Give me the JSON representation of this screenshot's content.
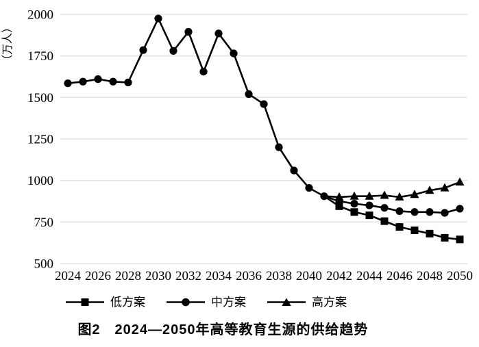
{
  "chart_data": {
    "type": "line",
    "title": "图2　2024—2050年高等教育生源的供给趋势",
    "xlabel": "",
    "ylabel": "（万人）",
    "ylim": [
      500,
      2000
    ],
    "yticks": [
      500,
      750,
      1000,
      1250,
      1500,
      1750,
      2000
    ],
    "xticks": [
      2024,
      2026,
      2028,
      2030,
      2032,
      2034,
      2036,
      2038,
      2040,
      2042,
      2044,
      2046,
      2048,
      2050
    ],
    "x_range": [
      2024,
      2050
    ],
    "grid": true,
    "legend": [
      "低方案",
      "中方案",
      "高方案"
    ],
    "legend_position": "bottom",
    "colors": {
      "series": "#000000",
      "gridline": "#d9d9d9",
      "background": "#ffffff",
      "text": "#000000"
    },
    "series": [
      {
        "key": "low",
        "name": "低方案",
        "marker": "square",
        "marker_from": 2042,
        "years": [
          2041,
          2042,
          2043,
          2044,
          2045,
          2046,
          2047,
          2048,
          2049,
          2050
        ],
        "values": [
          905,
          845,
          810,
          790,
          755,
          720,
          700,
          680,
          655,
          645
        ]
      },
      {
        "key": "mid",
        "name": "中方案",
        "marker": "circle",
        "years": [
          2024,
          2025,
          2026,
          2027,
          2028,
          2029,
          2030,
          2031,
          2032,
          2033,
          2034,
          2035,
          2036,
          2037,
          2038,
          2039,
          2040,
          2041,
          2042,
          2043,
          2044,
          2045,
          2046,
          2047,
          2048,
          2049,
          2050
        ],
        "values": [
          1585,
          1595,
          1610,
          1595,
          1590,
          1785,
          1975,
          1780,
          1895,
          1655,
          1885,
          1765,
          1520,
          1460,
          1200,
          1060,
          955,
          905,
          875,
          860,
          850,
          835,
          815,
          810,
          810,
          805,
          830
        ]
      },
      {
        "key": "high",
        "name": "高方案",
        "marker": "triangle",
        "marker_from": 2042,
        "years": [
          2041,
          2042,
          2043,
          2044,
          2045,
          2046,
          2047,
          2048,
          2049,
          2050
        ],
        "values": [
          905,
          900,
          905,
          905,
          910,
          900,
          915,
          940,
          955,
          990
        ]
      }
    ]
  }
}
